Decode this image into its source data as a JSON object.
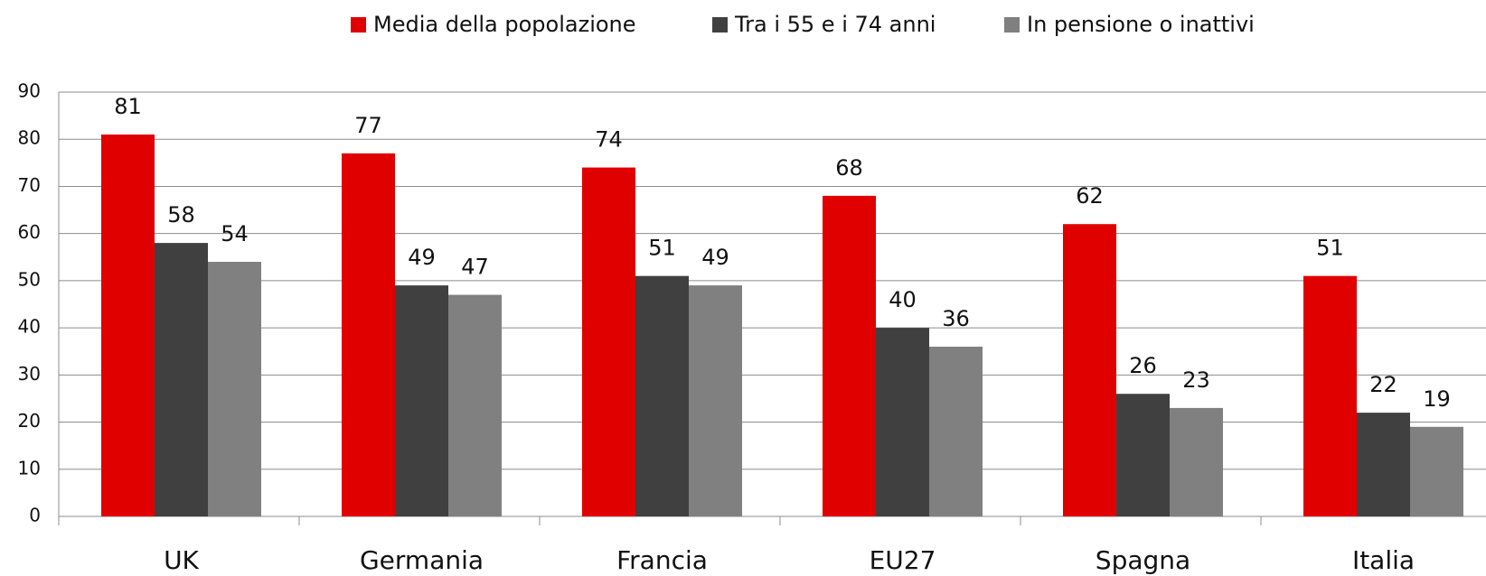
{
  "chart_data": {
    "type": "bar",
    "categories": [
      "UK",
      "Germania",
      "Francia",
      "EU27",
      "Spagna",
      "Italia"
    ],
    "series": [
      {
        "name": "Media della popolazione",
        "color": "#e00000",
        "values": [
          81,
          77,
          74,
          68,
          62,
          51
        ]
      },
      {
        "name": "Tra i 55 e i 74 anni",
        "color": "#404040",
        "values": [
          58,
          49,
          51,
          40,
          26,
          22
        ]
      },
      {
        "name": "In pensione o inattivi",
        "color": "#808080",
        "values": [
          54,
          47,
          49,
          36,
          23,
          19
        ]
      }
    ],
    "ylim": [
      0,
      90
    ],
    "yticks": [
      0,
      10,
      20,
      30,
      40,
      50,
      60,
      70,
      80,
      90
    ],
    "grid": true,
    "legend": "top"
  }
}
